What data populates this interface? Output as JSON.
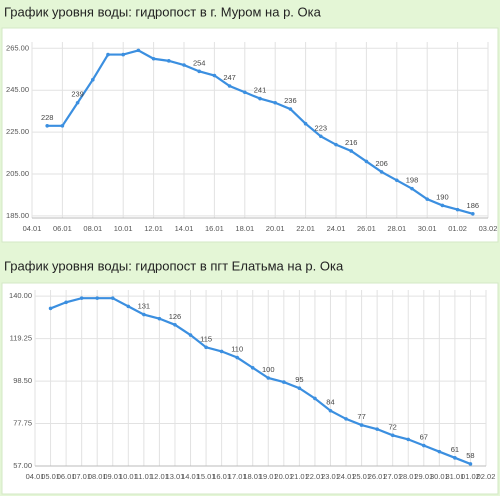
{
  "chart_data": [
    {
      "type": "line",
      "title": "График уровня воды: гидропост в г. Муром на р. Ока",
      "categories": [
        "04.01",
        null,
        "06.01",
        null,
        "08.01",
        null,
        "10.01",
        null,
        "12.01",
        null,
        "14.01",
        null,
        "16.01",
        null,
        "18.01",
        null,
        "20.01",
        null,
        "22.01",
        null,
        "24.01",
        null,
        "26.01",
        null,
        "28.01",
        null,
        "30.01",
        null,
        "01.02",
        null,
        "03.02"
      ],
      "series": [
        {
          "color": "#3b8fe0",
          "values": [
            null,
            228,
            228,
            239,
            250,
            262,
            262,
            264,
            260,
            259,
            257,
            254,
            252,
            247,
            244,
            241,
            239,
            236,
            229,
            223,
            219,
            216,
            211,
            206,
            202,
            198,
            193,
            190,
            188,
            186,
            null
          ],
          "value_labels": [
            null,
            "228",
            null,
            "239",
            null,
            null,
            null,
            null,
            null,
            null,
            null,
            "254",
            null,
            "247",
            null,
            "241",
            null,
            "236",
            null,
            "223",
            null,
            "216",
            null,
            "206",
            null,
            "198",
            null,
            "190",
            null,
            "186",
            null
          ]
        }
      ],
      "ylim": [
        184,
        268
      ],
      "yticks": [
        {
          "value": 185,
          "label": "185.00"
        },
        {
          "value": 205,
          "label": "205.00"
        },
        {
          "value": 225,
          "label": "225.00"
        },
        {
          "value": 245,
          "label": "245.00"
        },
        {
          "value": 265,
          "label": "265.00"
        }
      ],
      "grid": true
    },
    {
      "type": "line",
      "title": "График уровня воды: гидропост в пгт Елатьма на р. Ока",
      "categories": [
        "04.01",
        "05.01",
        "06.01",
        "07.01",
        "08.01",
        "09.01",
        "10.01",
        "11.01",
        "12.01",
        "13.01",
        "14.01",
        "15.01",
        "16.01",
        "17.01",
        "18.01",
        "19.01",
        "20.01",
        "21.01",
        "22.01",
        "23.01",
        "24.01",
        "25.01",
        "26.01",
        "27.01",
        "28.01",
        "29.01",
        "30.01",
        "31.01",
        "01.02",
        "02.02"
      ],
      "series": [
        {
          "color": "#3b8fe0",
          "values": [
            null,
            134,
            137,
            139,
            139,
            139,
            135,
            131,
            129,
            126,
            121,
            115,
            113,
            110,
            105,
            100,
            98,
            95,
            90,
            84,
            80,
            77,
            75,
            72,
            70,
            67,
            64,
            61,
            58,
            null
          ],
          "value_labels": [
            null,
            null,
            null,
            null,
            null,
            null,
            null,
            "131",
            null,
            "126",
            null,
            "115",
            null,
            "110",
            null,
            "100",
            null,
            "95",
            null,
            "84",
            null,
            "77",
            null,
            "72",
            null,
            "67",
            null,
            "61",
            "58",
            null
          ]
        }
      ],
      "ylim": [
        57,
        143
      ],
      "yticks": [
        {
          "value": 57,
          "label": "57.00"
        },
        {
          "value": 77.75,
          "label": "77.75"
        },
        {
          "value": 98.5,
          "label": "98.50"
        },
        {
          "value": 119.25,
          "label": "119.25"
        },
        {
          "value": 140,
          "label": "140.00"
        }
      ],
      "grid": true
    }
  ]
}
